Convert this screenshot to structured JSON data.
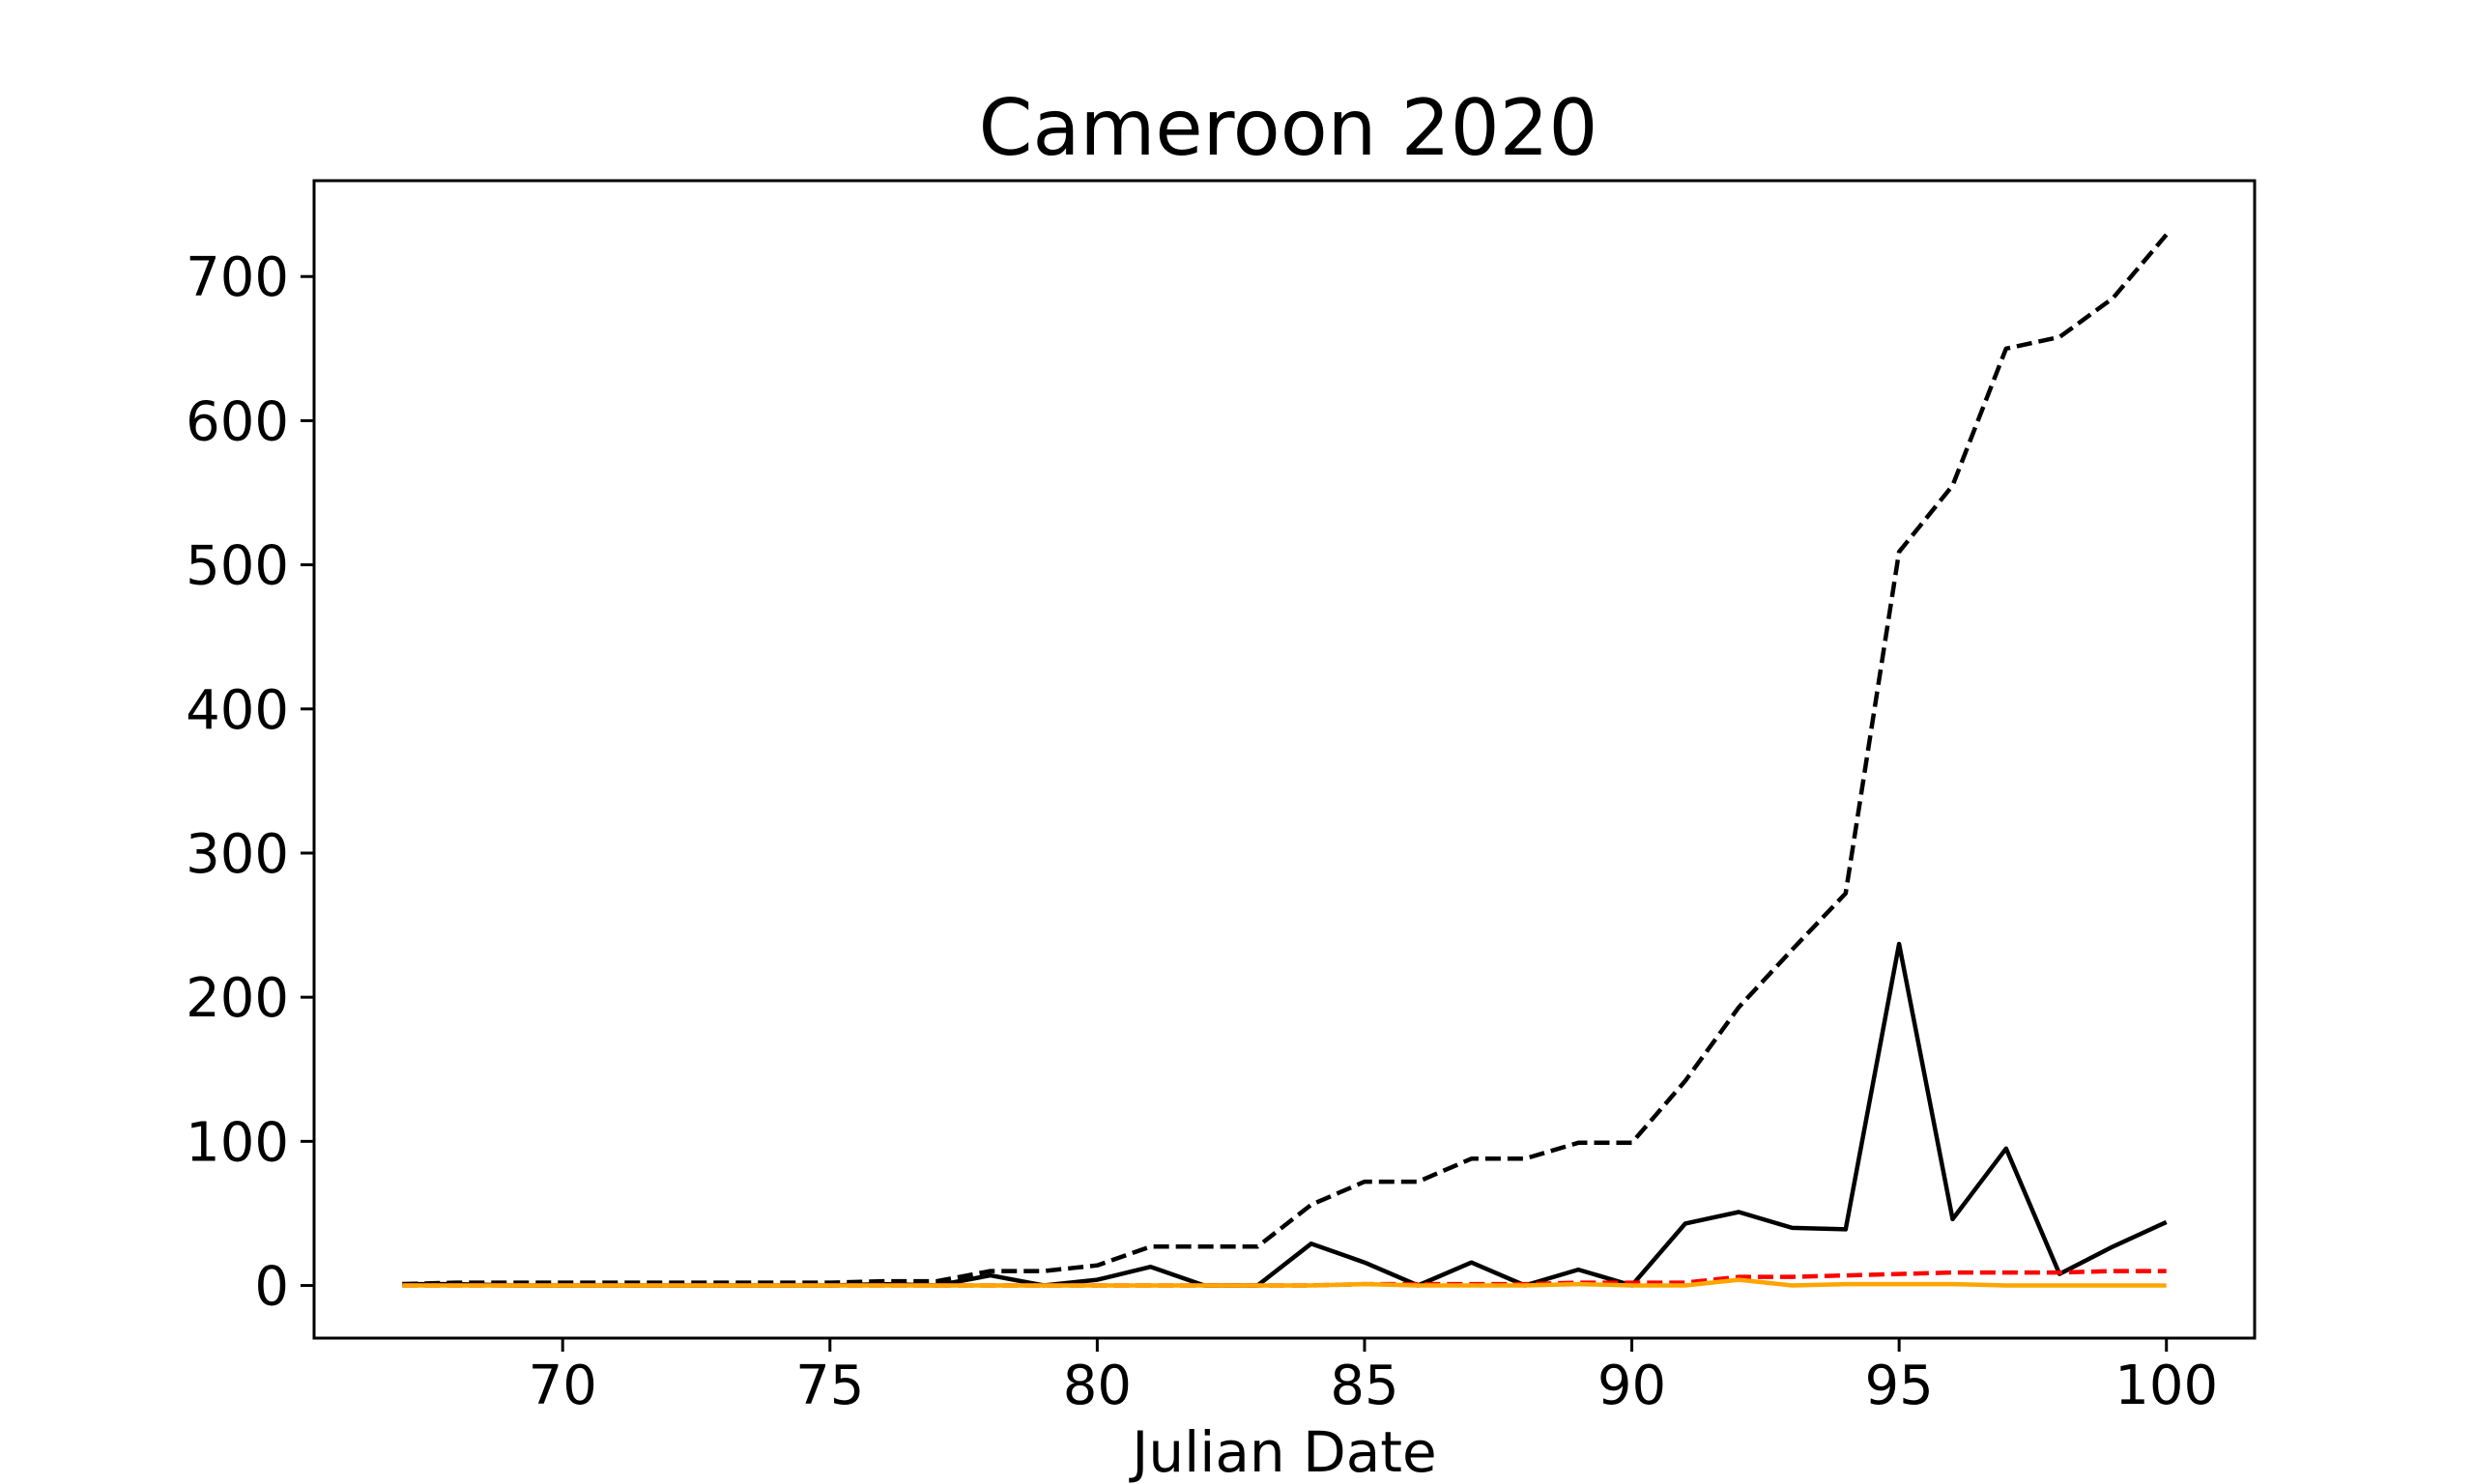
{
  "chart_data": {
    "type": "line",
    "title": "Cameroon 2020",
    "xlabel": "Julian Date",
    "ylabel": "",
    "xlim": [
      65.35,
      101.65
    ],
    "ylim": [
      -36.5,
      766.5
    ],
    "xticks": [
      70,
      75,
      80,
      85,
      90,
      95,
      100
    ],
    "yticks": [
      0,
      100,
      200,
      300,
      400,
      500,
      600,
      700
    ],
    "grid": false,
    "legend": "none",
    "x": [
      67,
      68,
      69,
      70,
      71,
      72,
      73,
      74,
      75,
      76,
      77,
      78,
      79,
      80,
      81,
      82,
      83,
      84,
      85,
      86,
      87,
      88,
      89,
      90,
      91,
      92,
      93,
      94,
      95,
      96,
      97,
      98,
      99,
      100
    ],
    "series": [
      {
        "color": "#000000",
        "dash": "dashed",
        "values": [
          1,
          2,
          2,
          2,
          2,
          2,
          2,
          2,
          2,
          3,
          3,
          10,
          10,
          14,
          27,
          27,
          27,
          56,
          72,
          72,
          88,
          88,
          99,
          99,
          142,
          193,
          233,
          272,
          509,
          555,
          650,
          658,
          685,
          729
        ]
      },
      {
        "color": "#000000",
        "dash": "solid",
        "values": [
          1,
          1,
          0,
          0,
          0,
          0,
          0,
          0,
          0,
          1,
          0,
          7,
          0,
          4,
          13,
          0,
          0,
          29,
          16,
          0,
          16,
          0,
          11,
          0,
          43,
          51,
          40,
          39,
          237,
          46,
          95,
          8,
          27,
          44
        ]
      },
      {
        "color": "#ff0000",
        "dash": "dashed",
        "values": [
          0,
          0,
          0,
          0,
          0,
          0,
          0,
          0,
          0,
          0,
          0,
          0,
          0,
          0,
          0,
          0,
          0,
          0,
          1,
          1,
          1,
          1,
          2,
          2,
          2,
          6,
          6,
          7,
          8,
          9,
          9,
          9,
          10,
          10
        ]
      },
      {
        "color": "#ffa500",
        "dash": "solid",
        "values": [
          0,
          0,
          0,
          0,
          0,
          0,
          0,
          0,
          0,
          0,
          0,
          0,
          0,
          0,
          0,
          0,
          0,
          0,
          1,
          0,
          0,
          0,
          1,
          0,
          0,
          4,
          0,
          1,
          1,
          1,
          0,
          0,
          0,
          0
        ]
      }
    ]
  }
}
